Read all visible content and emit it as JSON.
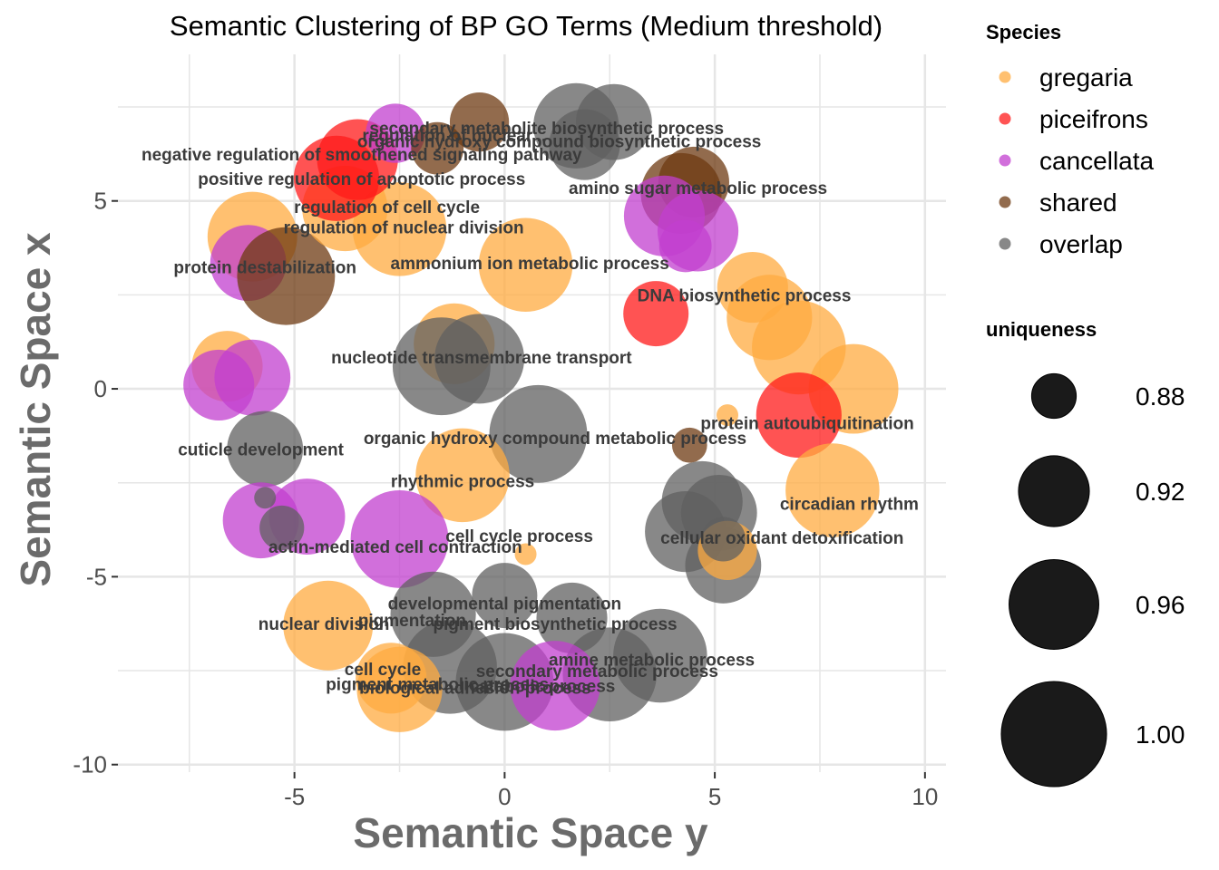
{
  "chart_data": {
    "type": "scatter",
    "title": "Semantic Clustering of BP GO Terms (Medium threshold)",
    "xlabel": "Semantic Space y",
    "ylabel": "Semantic Space x",
    "xlim": [
      -9.2,
      10.5
    ],
    "ylim": [
      -10.2,
      8.9
    ],
    "x_ticks": [
      -5,
      0,
      5,
      10
    ],
    "y_ticks": [
      5,
      0,
      -5,
      -10
    ],
    "x_tick_labels": [
      "-5",
      "0",
      "5",
      "10"
    ],
    "y_tick_labels": [
      "5",
      "0",
      "-5",
      "-10"
    ],
    "grid": true,
    "size_range": [
      0.86,
      1.01
    ],
    "species": [
      {
        "name": "gregaria",
        "color": "#FFAB40"
      },
      {
        "name": "piceifrons",
        "color": "#FF1A1A"
      },
      {
        "name": "cancellata",
        "color": "#C13FCF"
      },
      {
        "name": "shared",
        "color": "#6E3A12"
      },
      {
        "name": "overlap",
        "color": "#606060"
      }
    ],
    "points": [
      {
        "x": -6.0,
        "y": 4.05,
        "u": 0.96,
        "s": "gregaria"
      },
      {
        "x": -6.1,
        "y": 3.35,
        "u": 0.93,
        "s": "cancellata"
      },
      {
        "x": -5.2,
        "y": 3.0,
        "u": 0.98,
        "s": "shared"
      },
      {
        "x": -3.8,
        "y": 4.8,
        "u": 0.95,
        "s": "gregaria"
      },
      {
        "x": -2.5,
        "y": 4.25,
        "u": 0.97,
        "s": "gregaria"
      },
      {
        "x": -4.0,
        "y": 5.6,
        "u": 0.95,
        "s": "piceifrons"
      },
      {
        "x": -3.5,
        "y": 6.1,
        "u": 0.94,
        "s": "piceifrons"
      },
      {
        "x": -2.6,
        "y": 6.8,
        "u": 0.9,
        "s": "cancellata"
      },
      {
        "x": -1.6,
        "y": 6.4,
        "u": 0.89,
        "s": "shared"
      },
      {
        "x": -0.6,
        "y": 7.1,
        "u": 0.9,
        "s": "shared"
      },
      {
        "x": 1.7,
        "y": 7.0,
        "u": 0.95,
        "s": "overlap"
      },
      {
        "x": 2.6,
        "y": 7.1,
        "u": 0.93,
        "s": "overlap"
      },
      {
        "x": 1.9,
        "y": 6.5,
        "u": 0.92,
        "s": "overlap"
      },
      {
        "x": 0.5,
        "y": 3.3,
        "u": 0.97,
        "s": "gregaria"
      },
      {
        "x": 4.5,
        "y": 5.5,
        "u": 0.92,
        "s": "shared"
      },
      {
        "x": 4.2,
        "y": 5.2,
        "u": 0.94,
        "s": "shared"
      },
      {
        "x": 3.8,
        "y": 4.6,
        "u": 0.94,
        "s": "cancellata"
      },
      {
        "x": 4.6,
        "y": 4.2,
        "u": 0.94,
        "s": "cancellata"
      },
      {
        "x": 4.3,
        "y": 3.8,
        "u": 0.89,
        "s": "cancellata"
      },
      {
        "x": 5.9,
        "y": 2.7,
        "u": 0.92,
        "s": "gregaria"
      },
      {
        "x": 6.3,
        "y": 1.9,
        "u": 0.95,
        "s": "gregaria"
      },
      {
        "x": 7.0,
        "y": 1.1,
        "u": 0.97,
        "s": "gregaria"
      },
      {
        "x": 8.3,
        "y": 0.0,
        "u": 0.96,
        "s": "gregaria"
      },
      {
        "x": 3.6,
        "y": 2.0,
        "u": 0.91,
        "s": "piceifrons"
      },
      {
        "x": 7.0,
        "y": -0.7,
        "u": 0.95,
        "s": "piceifrons"
      },
      {
        "x": 5.3,
        "y": -0.7,
        "u": 0.81,
        "s": "gregaria"
      },
      {
        "x": 4.4,
        "y": -1.5,
        "u": 0.87,
        "s": "shared"
      },
      {
        "x": 7.8,
        "y": -2.7,
        "u": 0.97,
        "s": "gregaria"
      },
      {
        "x": 4.7,
        "y": -3.0,
        "u": 0.94,
        "s": "overlap"
      },
      {
        "x": 5.1,
        "y": -3.3,
        "u": 0.93,
        "s": "overlap"
      },
      {
        "x": 4.3,
        "y": -3.8,
        "u": 0.94,
        "s": "overlap"
      },
      {
        "x": 5.2,
        "y": -4.7,
        "u": 0.93,
        "s": "overlap"
      },
      {
        "x": 5.3,
        "y": -4.3,
        "u": 0.9,
        "s": "gregaria"
      },
      {
        "x": 5.2,
        "y": -4.0,
        "u": 0.88,
        "s": "overlap"
      },
      {
        "x": -6.6,
        "y": 0.6,
        "u": 0.92,
        "s": "gregaria"
      },
      {
        "x": -6.0,
        "y": 0.3,
        "u": 0.93,
        "s": "cancellata"
      },
      {
        "x": -6.8,
        "y": 0.1,
        "u": 0.92,
        "s": "cancellata"
      },
      {
        "x": -1.2,
        "y": 1.2,
        "u": 0.94,
        "s": "gregaria"
      },
      {
        "x": -0.6,
        "y": 0.8,
        "u": 0.96,
        "s": "overlap"
      },
      {
        "x": -1.5,
        "y": 0.6,
        "u": 0.98,
        "s": "overlap"
      },
      {
        "x": 0.8,
        "y": -1.2,
        "u": 0.98,
        "s": "overlap"
      },
      {
        "x": -5.7,
        "y": -1.6,
        "u": 0.93,
        "s": "overlap"
      },
      {
        "x": -1.0,
        "y": -2.3,
        "u": 0.97,
        "s": "gregaria"
      },
      {
        "x": 0.5,
        "y": -4.4,
        "u": 0.86,
        "s": "gregaria"
      },
      {
        "x": -5.8,
        "y": -3.5,
        "u": 0.93,
        "s": "cancellata"
      },
      {
        "x": -4.7,
        "y": -3.4,
        "u": 0.93,
        "s": "cancellata"
      },
      {
        "x": -5.7,
        "y": -2.9,
        "u": 0.86,
        "s": "overlap"
      },
      {
        "x": -5.3,
        "y": -3.7,
        "u": 0.88,
        "s": "overlap"
      },
      {
        "x": -2.5,
        "y": -4.0,
        "u": 0.98,
        "s": "cancellata"
      },
      {
        "x": -4.2,
        "y": -6.3,
        "u": 0.96,
        "s": "gregaria"
      },
      {
        "x": -1.7,
        "y": -6.0,
        "u": 0.95,
        "s": "overlap"
      },
      {
        "x": 0.0,
        "y": -5.5,
        "u": 0.91,
        "s": "overlap"
      },
      {
        "x": 1.6,
        "y": -6.1,
        "u": 0.92,
        "s": "overlap"
      },
      {
        "x": 3.7,
        "y": -7.1,
        "u": 0.97,
        "s": "overlap"
      },
      {
        "x": 2.5,
        "y": -7.6,
        "u": 0.97,
        "s": "overlap"
      },
      {
        "x": 0.0,
        "y": -7.8,
        "u": 0.98,
        "s": "overlap"
      },
      {
        "x": -1.3,
        "y": -7.4,
        "u": 0.97,
        "s": "overlap"
      },
      {
        "x": 1.2,
        "y": -7.9,
        "u": 0.96,
        "s": "cancellata"
      },
      {
        "x": -2.7,
        "y": -7.7,
        "u": 0.92,
        "s": "gregaria"
      },
      {
        "x": -2.5,
        "y": -8.0,
        "u": 0.95,
        "s": "gregaria"
      }
    ],
    "labels": [
      {
        "text": "secondary metabolite biosynthetic process",
        "x": 1.0,
        "y": 6.95
      },
      {
        "text": "regulation of nuclear...",
        "x": -1.2,
        "y": 6.75
      },
      {
        "text": "organic hydroxy compound biosynthetic process",
        "x": 1.3,
        "y": 6.6
      },
      {
        "text": "negative regulation of smoothened signaling pathway",
        "x": -3.4,
        "y": 6.25
      },
      {
        "text": "positive regulation of apoptotic process",
        "x": -3.4,
        "y": 5.6
      },
      {
        "text": "amino sugar metabolic process",
        "x": 4.6,
        "y": 5.35
      },
      {
        "text": "regulation of cell cycle",
        "x": -2.8,
        "y": 4.85
      },
      {
        "text": "regulation of nuclear division",
        "x": -2.4,
        "y": 4.3
      },
      {
        "text": "protein destabilization",
        "x": -5.7,
        "y": 3.25
      },
      {
        "text": "ammonium ion metabolic process",
        "x": 0.6,
        "y": 3.35
      },
      {
        "text": "DNA biosynthetic process",
        "x": 5.7,
        "y": 2.5
      },
      {
        "text": "nucleotide transmembrane transport",
        "x": -0.55,
        "y": 0.85
      },
      {
        "text": "protein autoubiquitination",
        "x": 7.2,
        "y": -0.9
      },
      {
        "text": "organic hydroxy compound metabolic process",
        "x": 1.2,
        "y": -1.3
      },
      {
        "text": "cuticle development",
        "x": -5.8,
        "y": -1.6
      },
      {
        "text": "rhythmic process",
        "x": -1.0,
        "y": -2.45
      },
      {
        "text": "circadian rhythm",
        "x": 8.2,
        "y": -3.05
      },
      {
        "text": "cell cycle process",
        "x": 0.35,
        "y": -3.9
      },
      {
        "text": "cellular oxidant detoxification",
        "x": 6.6,
        "y": -3.95
      },
      {
        "text": "actin-mediated cell contraction",
        "x": -2.6,
        "y": -4.2
      },
      {
        "text": "developmental pigmentation",
        "x": 0.0,
        "y": -5.7
      },
      {
        "text": "pigmentation",
        "x": -2.2,
        "y": -6.15
      },
      {
        "text": "nuclear division",
        "x": -4.3,
        "y": -6.25
      },
      {
        "text": "pigment biosynthetic process",
        "x": 1.2,
        "y": -6.25
      },
      {
        "text": "amine metabolic process",
        "x": 3.5,
        "y": -7.2
      },
      {
        "text": "secondary metabolic process",
        "x": 2.2,
        "y": -7.5
      },
      {
        "text": "cell cycle",
        "x": -2.9,
        "y": -7.45
      },
      {
        "text": "pigment metabolic process",
        "x": -1.6,
        "y": -7.85
      },
      {
        "text": "biological adhesion process",
        "x": -0.7,
        "y": -7.95
      },
      {
        "text": "catabolic process",
        "x": 0.9,
        "y": -7.9
      }
    ],
    "legend": {
      "species_title": "Species",
      "size_title": "uniqueness",
      "size_entries": [
        0.88,
        0.92,
        0.96,
        1.0
      ],
      "size_labels": [
        "0.88",
        "0.92",
        "0.96",
        "1.00"
      ],
      "size_color": "#1a1a1a"
    },
    "grid_color": "#e6e6e6",
    "point_opacity": 0.75
  }
}
